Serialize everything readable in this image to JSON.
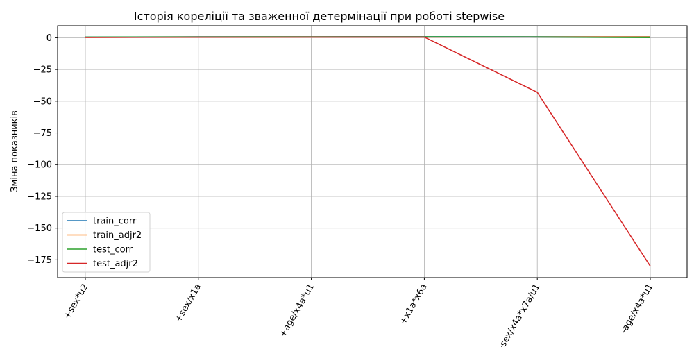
{
  "chart_data": {
    "type": "line",
    "title": "Історія кореліції та зваженної детермінації при роботі stepwise",
    "xlabel": "",
    "ylabel": "Зміна показників",
    "categories": [
      "+sex*u2",
      "+sex/x1a",
      "+age/x4a*u1",
      "+x1a*x6a",
      "+sex/x4a*x7a/u1",
      "-age/x4a*u1"
    ],
    "series": [
      {
        "name": "train_corr",
        "color": "#1f77b4",
        "values": [
          0.55,
          0.7,
          0.75,
          0.78,
          0.8,
          0.82
        ]
      },
      {
        "name": "train_adjr2",
        "color": "#ff7f0e",
        "values": [
          0.3,
          0.5,
          0.56,
          0.6,
          0.64,
          0.67
        ]
      },
      {
        "name": "test_corr",
        "color": "#2ca02c",
        "values": [
          0.5,
          0.68,
          0.7,
          0.72,
          0.6,
          0.1
        ]
      },
      {
        "name": "test_adjr2",
        "color": "#d62728",
        "values": [
          0.25,
          0.45,
          0.5,
          0.52,
          -43.0,
          -180.0
        ]
      }
    ],
    "ylim": [
      -189,
      9.5
    ],
    "yticks": [
      0,
      -25,
      -50,
      -75,
      -100,
      -125,
      -150,
      -175
    ],
    "grid": true,
    "legend_position": "lower-left"
  }
}
